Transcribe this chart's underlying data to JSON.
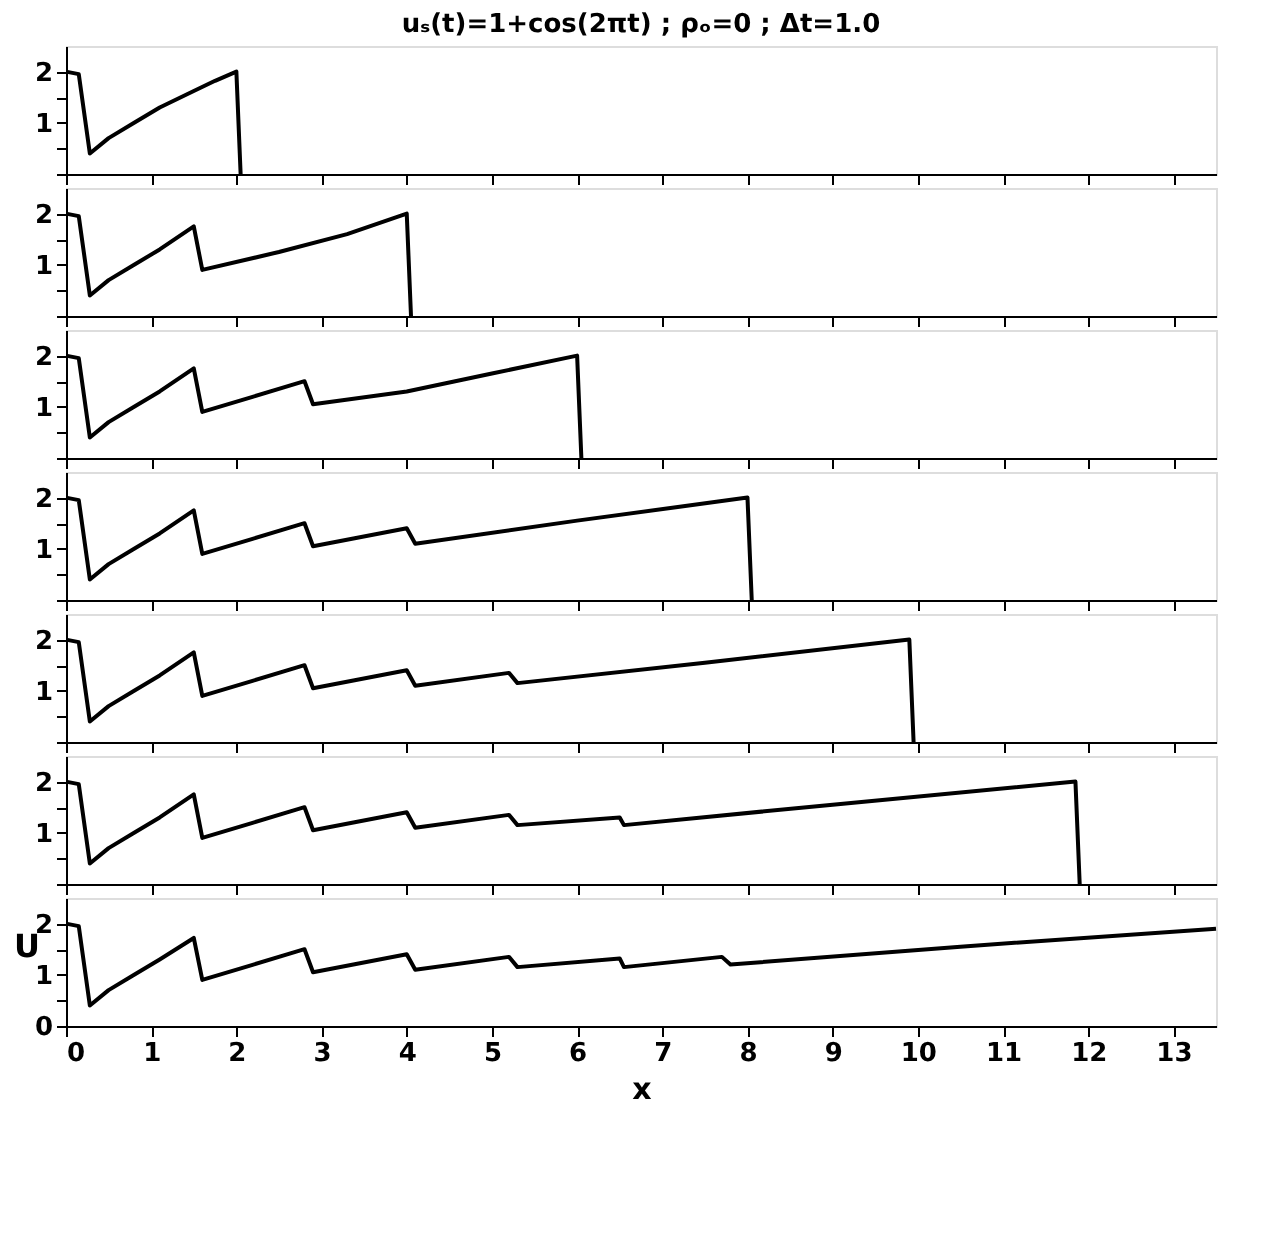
{
  "chart_data": [
    {
      "type": "line",
      "title": "uₛ(t)=1+cos(2πt) ;   ρₒ=0 ;   Δt=1.0",
      "xlim": [
        0,
        13.5
      ],
      "xticks": [
        0,
        1,
        2,
        3,
        4,
        5,
        6,
        7,
        8,
        9,
        10,
        11,
        12,
        13
      ],
      "ylim": [
        0,
        2.5
      ],
      "yticks": [
        {
          "value": 0,
          "label": null
        },
        {
          "value": 0.5,
          "label": null
        },
        1,
        {
          "value": 1.5,
          "label": null
        },
        2
      ],
      "tick_labels": "y",
      "grid": false,
      "series": [
        {
          "color": "#000000",
          "x": [
            0,
            0.15,
            0.28,
            0.5,
            0.8,
            1.1,
            1.5,
            1.75,
            2.0,
            2.05
          ],
          "values": [
            2.0,
            1.95,
            0.4,
            0.7,
            1.0,
            1.3,
            1.62,
            1.82,
            2.0,
            0
          ]
        }
      ]
    },
    {
      "type": "line",
      "xlim": [
        0,
        13.5
      ],
      "xticks": [
        0,
        1,
        2,
        3,
        4,
        5,
        6,
        7,
        8,
        9,
        10,
        11,
        12,
        13
      ],
      "ylim": [
        0,
        2.5
      ],
      "yticks": [
        {
          "value": 0,
          "label": null
        },
        {
          "value": 0.5,
          "label": null
        },
        1,
        {
          "value": 1.5,
          "label": null
        },
        2
      ],
      "tick_labels": "y",
      "grid": false,
      "series": [
        {
          "color": "#000000",
          "x": [
            0,
            0.15,
            0.28,
            0.5,
            0.8,
            1.1,
            1.5,
            1.6,
            2.5,
            3.3,
            4.0,
            4.05
          ],
          "values": [
            2.0,
            1.95,
            0.4,
            0.7,
            1.0,
            1.3,
            1.75,
            0.9,
            1.25,
            1.6,
            2.0,
            0
          ]
        }
      ]
    },
    {
      "type": "line",
      "xlim": [
        0,
        13.5
      ],
      "xticks": [
        0,
        1,
        2,
        3,
        4,
        5,
        6,
        7,
        8,
        9,
        10,
        11,
        12,
        13
      ],
      "ylim": [
        0,
        2.5
      ],
      "yticks": [
        {
          "value": 0,
          "label": null
        },
        {
          "value": 0.5,
          "label": null
        },
        1,
        {
          "value": 1.5,
          "label": null
        },
        2
      ],
      "tick_labels": "y",
      "grid": false,
      "series": [
        {
          "color": "#000000",
          "x": [
            0,
            0.15,
            0.28,
            0.5,
            0.8,
            1.1,
            1.5,
            1.6,
            2.2,
            2.8,
            2.9,
            4.0,
            5.0,
            6.0,
            6.05
          ],
          "values": [
            2.0,
            1.95,
            0.4,
            0.7,
            1.0,
            1.3,
            1.75,
            0.9,
            1.2,
            1.5,
            1.05,
            1.3,
            1.65,
            2.0,
            0
          ]
        }
      ]
    },
    {
      "type": "line",
      "xlim": [
        0,
        13.5
      ],
      "xticks": [
        0,
        1,
        2,
        3,
        4,
        5,
        6,
        7,
        8,
        9,
        10,
        11,
        12,
        13
      ],
      "ylim": [
        0,
        2.5
      ],
      "yticks": [
        {
          "value": 0,
          "label": null
        },
        {
          "value": 0.5,
          "label": null
        },
        1,
        {
          "value": 1.5,
          "label": null
        },
        2
      ],
      "tick_labels": "y",
      "grid": false,
      "series": [
        {
          "color": "#000000",
          "x": [
            0,
            0.15,
            0.28,
            0.5,
            0.8,
            1.1,
            1.5,
            1.6,
            2.2,
            2.8,
            2.9,
            4.0,
            4.1,
            6.0,
            8.0,
            8.05
          ],
          "values": [
            2.0,
            1.95,
            0.4,
            0.7,
            1.0,
            1.3,
            1.75,
            0.9,
            1.2,
            1.5,
            1.05,
            1.4,
            1.1,
            1.55,
            2.0,
            0
          ]
        }
      ]
    },
    {
      "type": "line",
      "xlim": [
        0,
        13.5
      ],
      "xticks": [
        0,
        1,
        2,
        3,
        4,
        5,
        6,
        7,
        8,
        9,
        10,
        11,
        12,
        13
      ],
      "ylim": [
        0,
        2.5
      ],
      "yticks": [
        {
          "value": 0,
          "label": null
        },
        {
          "value": 0.5,
          "label": null
        },
        1,
        {
          "value": 1.5,
          "label": null
        },
        2
      ],
      "tick_labels": "y",
      "grid": false,
      "series": [
        {
          "color": "#000000",
          "x": [
            0,
            0.15,
            0.28,
            0.5,
            0.8,
            1.1,
            1.5,
            1.6,
            2.2,
            2.8,
            2.9,
            4.0,
            4.1,
            5.2,
            5.3,
            7.5,
            9.9,
            9.95
          ],
          "values": [
            2.0,
            1.95,
            0.4,
            0.7,
            1.0,
            1.3,
            1.75,
            0.9,
            1.2,
            1.5,
            1.05,
            1.4,
            1.1,
            1.35,
            1.15,
            1.55,
            2.0,
            0
          ]
        }
      ]
    },
    {
      "type": "line",
      "xlim": [
        0,
        13.5
      ],
      "xticks": [
        0,
        1,
        2,
        3,
        4,
        5,
        6,
        7,
        8,
        9,
        10,
        11,
        12,
        13
      ],
      "ylim": [
        0,
        2.5
      ],
      "yticks": [
        {
          "value": 0,
          "label": null
        },
        {
          "value": 0.5,
          "label": null
        },
        1,
        {
          "value": 1.5,
          "label": null
        },
        2
      ],
      "tick_labels": "y",
      "grid": false,
      "series": [
        {
          "color": "#000000",
          "x": [
            0,
            0.15,
            0.28,
            0.5,
            0.8,
            1.1,
            1.5,
            1.6,
            2.2,
            2.8,
            2.9,
            4.0,
            4.1,
            5.2,
            5.3,
            6.5,
            6.55,
            9.0,
            11.85,
            11.9
          ],
          "values": [
            2.0,
            1.95,
            0.4,
            0.7,
            1.0,
            1.3,
            1.75,
            0.9,
            1.2,
            1.5,
            1.05,
            1.4,
            1.1,
            1.35,
            1.15,
            1.3,
            1.15,
            1.55,
            2.0,
            0
          ]
        }
      ]
    },
    {
      "type": "line",
      "xlabel": "x",
      "ylabel": "U",
      "xlim": [
        0,
        13.5
      ],
      "xticks": [
        0,
        1,
        2,
        3,
        4,
        5,
        6,
        7,
        8,
        9,
        10,
        11,
        12,
        13
      ],
      "ylim": [
        0,
        2.5
      ],
      "yticks": [
        0,
        {
          "value": 0.5,
          "label": null
        },
        1,
        {
          "value": 1.5,
          "label": null
        },
        2
      ],
      "grid": false,
      "series": [
        {
          "color": "#000000",
          "x": [
            0,
            0.15,
            0.28,
            0.5,
            0.8,
            1.1,
            1.5,
            1.6,
            2.2,
            2.8,
            2.9,
            4.0,
            4.1,
            5.2,
            5.3,
            6.5,
            6.55,
            7.7,
            7.8,
            10.5,
            13.5
          ],
          "values": [
            2.0,
            1.95,
            0.4,
            0.7,
            1.0,
            1.3,
            1.72,
            0.9,
            1.2,
            1.5,
            1.05,
            1.4,
            1.1,
            1.35,
            1.15,
            1.32,
            1.15,
            1.35,
            1.2,
            1.55,
            1.9
          ]
        }
      ]
    }
  ]
}
